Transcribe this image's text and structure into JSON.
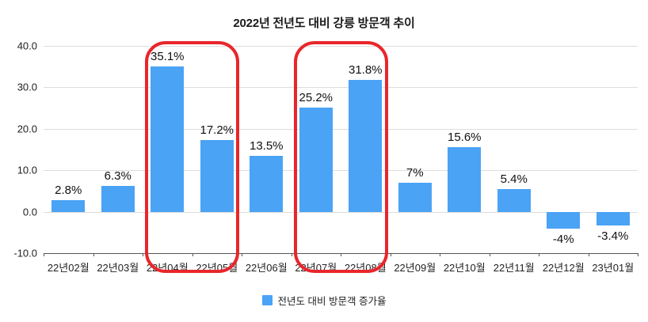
{
  "title": "2022년 전년도 대비 강릉 방문객 추이",
  "colors": {
    "bar": "#4aa3f5",
    "highlight": "#e8262b",
    "grid": "#dddddd",
    "axis": "#555555"
  },
  "legend": {
    "label": "전년도 대비 방문객 증가율"
  },
  "chart_data": {
    "type": "bar",
    "title": "2022년 전년도 대비 강릉 방문객 추이",
    "categories": [
      "22년02월",
      "22년03월",
      "22년04월",
      "22년05월",
      "22년06월",
      "22년07월",
      "22년08월",
      "22년09월",
      "22년10월",
      "22년11월",
      "22년12월",
      "23년01월"
    ],
    "values": [
      2.8,
      6.3,
      35.1,
      17.2,
      13.5,
      25.2,
      31.8,
      7,
      15.6,
      5.4,
      -4,
      -3.4
    ],
    "value_labels": [
      "2.8%",
      "6.3%",
      "35.1%",
      "17.2%",
      "13.5%",
      "25.2%",
      "31.8%",
      "7%",
      "15.6%",
      "5.4%",
      "-4%",
      "-3.4%"
    ],
    "xlabel": "",
    "ylabel": "",
    "ylim": [
      -10,
      40
    ],
    "yticks": [
      40.0,
      30.0,
      20.0,
      10.0,
      0.0,
      -10.0
    ],
    "ytick_labels": [
      "40.0",
      "30.0",
      "20.0",
      "10.0",
      "0.0",
      "-10.0"
    ],
    "grid": true,
    "legend_position": "bottom",
    "legend_entries": [
      "전년도 대비 방문객 증가율"
    ],
    "annotations": [
      "red rounded box around 22년04월–22년05월",
      "red rounded box around 22년07월–22년08월"
    ],
    "highlight_groups": [
      [
        2,
        3
      ],
      [
        5,
        6
      ]
    ]
  }
}
